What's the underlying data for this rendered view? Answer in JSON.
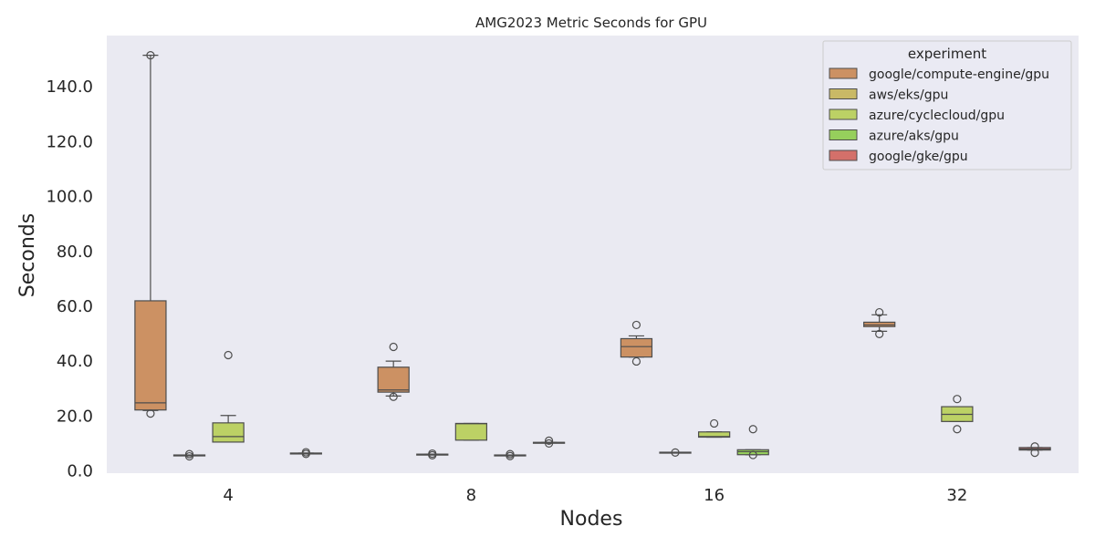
{
  "chart_data": {
    "type": "box",
    "title": "AMG2023 Metric Seconds for GPU",
    "xlabel": "Nodes",
    "ylabel": "Seconds",
    "categories": [
      "4",
      "8",
      "16",
      "32"
    ],
    "ylim": [
      0,
      155
    ],
    "yticks": [
      0,
      20,
      40,
      60,
      80,
      100,
      120,
      140
    ],
    "ytick_labels": [
      "0.0",
      "20.0",
      "40.0",
      "60.0",
      "80.0",
      "100.0",
      "120.0",
      "140.0"
    ],
    "legend_title": "experiment",
    "legend_position": "top-right",
    "grid": false,
    "series": [
      {
        "name": "google/compute-engine/gpu",
        "color": "#cc9163",
        "boxes": [
          {
            "category": "4",
            "q1": 22.2,
            "median": 24.8,
            "q3": 62.0,
            "whislo": 22.0,
            "whishi": 151.5,
            "fliers": [
              151.5,
              20.9
            ]
          },
          {
            "category": "8",
            "q1": 28.7,
            "median": 29.5,
            "q3": 37.8,
            "whislo": 27.3,
            "whishi": 40.0,
            "fliers": [
              45.2,
              27.0
            ]
          },
          {
            "category": "16",
            "q1": 41.5,
            "median": 45.3,
            "q3": 48.2,
            "whislo": 41.5,
            "whishi": 49.2,
            "fliers": [
              53.2,
              39.9
            ]
          },
          {
            "category": "32",
            "q1": 52.6,
            "median": 53.2,
            "q3": 54.2,
            "whislo": 50.9,
            "whishi": 56.9,
            "fliers": [
              57.8,
              49.9
            ]
          }
        ]
      },
      {
        "name": "aws/eks/gpu",
        "color": "#c9b966",
        "boxes": [
          {
            "category": "4",
            "q1": 5.6,
            "median": 5.7,
            "q3": 5.8,
            "whislo": 5.6,
            "whishi": 5.8,
            "fliers": [
              5.3,
              6.1
            ]
          },
          {
            "category": "8",
            "q1": 5.9,
            "median": 6.0,
            "q3": 6.1,
            "whislo": 5.9,
            "whishi": 6.1,
            "fliers": [
              5.7,
              6.3
            ]
          },
          {
            "category": "16",
            "q1": 6.6,
            "median": 6.7,
            "q3": 6.8,
            "whislo": 6.6,
            "whishi": 6.8,
            "fliers": [
              6.7
            ]
          }
        ]
      },
      {
        "name": "azure/cyclecloud/gpu",
        "color": "#bcd165",
        "boxes": [
          {
            "category": "4",
            "q1": 10.5,
            "median": 12.5,
            "q3": 17.5,
            "whislo": 10.5,
            "whishi": 20.2,
            "fliers": [
              42.2
            ]
          },
          {
            "category": "8",
            "q1": 11.2,
            "median": 17.2,
            "q3": 17.3,
            "whislo": 11.2,
            "whishi": 17.3,
            "fliers": []
          },
          {
            "category": "16",
            "q1": 12.3,
            "median": 12.5,
            "q3": 14.2,
            "whislo": 12.3,
            "whishi": 14.2,
            "fliers": [
              17.3
            ]
          },
          {
            "category": "32",
            "q1": 18.0,
            "median": 20.6,
            "q3": 23.4,
            "whislo": 18.0,
            "whishi": 23.4,
            "fliers": [
              26.2,
              15.2
            ]
          }
        ]
      },
      {
        "name": "azure/aks/gpu",
        "color": "#96cf5c",
        "boxes": [
          {
            "category": "8",
            "q1": 5.6,
            "median": 5.7,
            "q3": 5.8,
            "whislo": 5.6,
            "whishi": 5.8,
            "fliers": [
              5.4,
              6.1
            ]
          },
          {
            "category": "16",
            "q1": 5.9,
            "median": 7.0,
            "q3": 7.7,
            "whislo": 5.9,
            "whishi": 7.7,
            "fliers": [
              15.2,
              5.8
            ]
          }
        ]
      },
      {
        "name": "google/gke/gpu",
        "color": "#d4706a",
        "boxes": [
          {
            "category": "4",
            "q1": 6.3,
            "median": 6.4,
            "q3": 6.5,
            "whislo": 6.3,
            "whishi": 6.5,
            "fliers": [
              6.2,
              6.8
            ]
          },
          {
            "category": "8",
            "q1": 10.2,
            "median": 10.3,
            "q3": 10.4,
            "whislo": 10.2,
            "whishi": 10.4,
            "fliers": [
              10.0,
              11.0
            ]
          },
          {
            "category": "32",
            "q1": 7.6,
            "median": 8.0,
            "q3": 8.5,
            "whislo": 7.6,
            "whishi": 8.5,
            "fliers": [
              8.9,
              6.6
            ]
          }
        ]
      }
    ]
  }
}
